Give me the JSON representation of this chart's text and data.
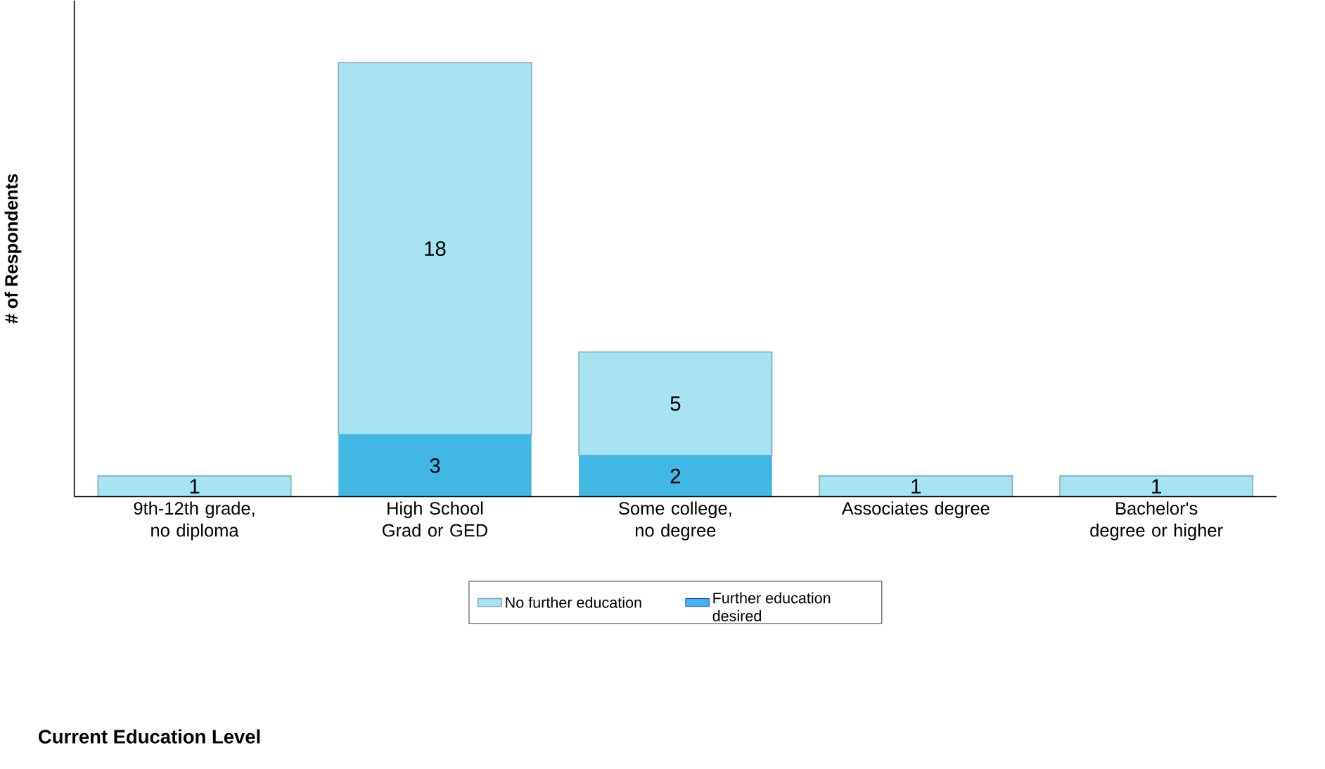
{
  "chart_data": {
    "type": "bar",
    "stacked": true,
    "annotations": [
      "Current Education Level"
    ],
    "ylabel": "# of Respondents",
    "categories": [
      "9th-12th grade, no diploma",
      "High School Grad or GED",
      "Some college, no degree",
      "Associates degree",
      "Bachelor's degree or higher"
    ],
    "series": [
      {
        "name": "Further education desired",
        "color": "#41b8e3",
        "values": [
          null,
          3,
          2,
          null,
          null
        ]
      },
      {
        "name": "No further education",
        "color": "#a6e4f4",
        "values": [
          1,
          18,
          5,
          1,
          1
        ]
      }
    ],
    "ylim": [
      0,
      24
    ],
    "tick_labels": "x",
    "data_labels": true,
    "legend": "bottom",
    "grid": false
  }
}
